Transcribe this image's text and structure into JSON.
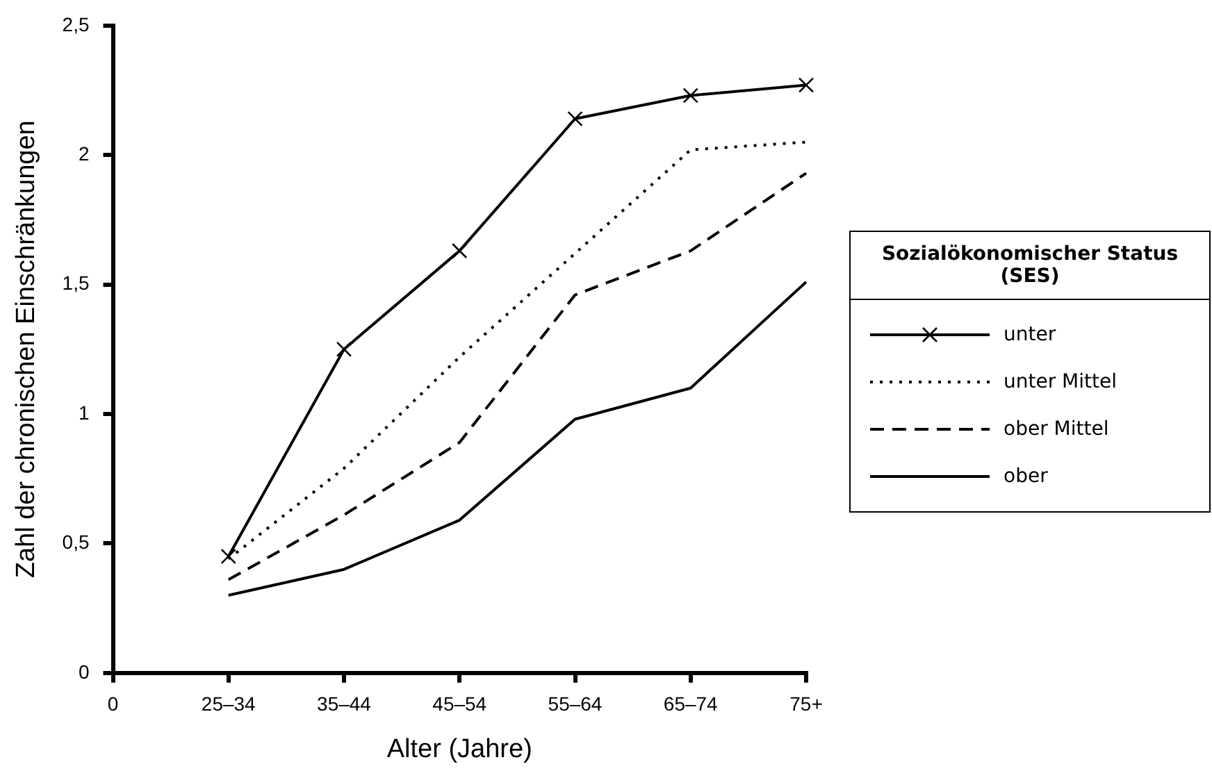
{
  "chart_data": {
    "type": "line",
    "xlabel": "Alter (Jahre)",
    "ylabel": "Zahl der chronischen Einschränkungen",
    "legend_title": "Sozialökonomischer Status (SES)",
    "legend": "right",
    "grid": false,
    "categories": [
      "0",
      "25–34",
      "35–44",
      "45–54",
      "55–64",
      "65–74",
      "75+"
    ],
    "ylim": [
      0,
      2.5
    ],
    "yticks": [
      0,
      {
        "value": 0.5,
        "label": "0,5"
      },
      1,
      {
        "value": 1.5,
        "label": "1,5"
      },
      2,
      {
        "value": 2.5,
        "label": "2,5"
      }
    ],
    "series": [
      {
        "name": "unter",
        "color": "#000000",
        "marker": "cross",
        "line_style": "solid",
        "values": [
          null,
          0.45,
          1.25,
          1.63,
          2.14,
          2.23,
          2.27
        ]
      },
      {
        "name": "unter Mittel",
        "color": "#000000",
        "marker": "none",
        "line_style": "dotted",
        "values": [
          null,
          0.44,
          0.79,
          1.22,
          1.62,
          2.02,
          2.05
        ]
      },
      {
        "name": "ober Mittel",
        "color": "#000000",
        "marker": "none",
        "line_style": "dashed",
        "values": [
          null,
          0.36,
          0.61,
          0.89,
          1.46,
          1.63,
          1.93
        ]
      },
      {
        "name": "ober",
        "color": "#000000",
        "marker": "none",
        "line_style": "solid",
        "values": [
          null,
          0.3,
          0.4,
          0.59,
          0.98,
          1.1,
          1.51
        ]
      }
    ]
  }
}
